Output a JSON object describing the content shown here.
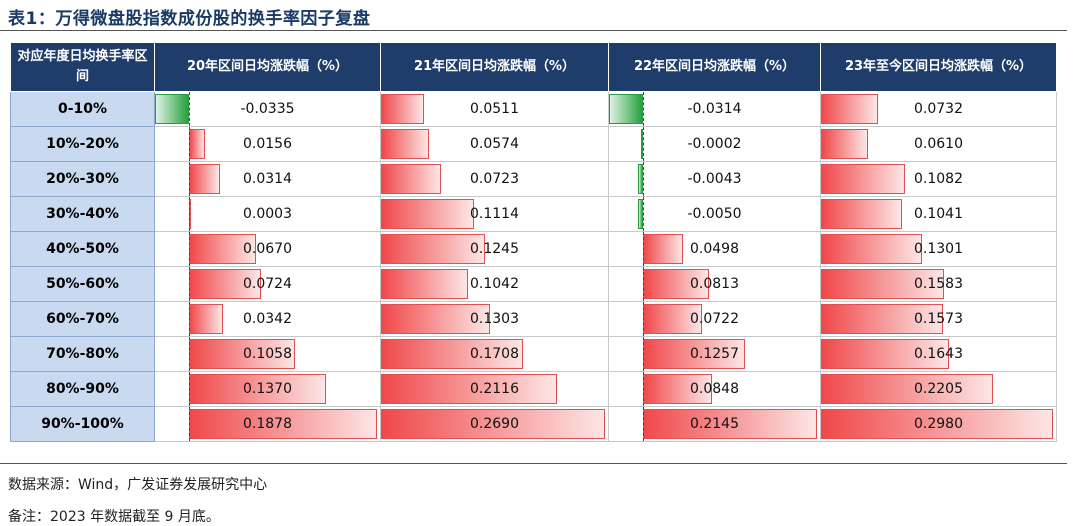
{
  "title": "表1：万得微盘股指数成份股的换手率因子复盘",
  "table": {
    "headers": [
      "对应年度日均换手率区间",
      "20年区间日均涨跌幅（%）",
      "21年区间日均涨跌幅（%）",
      "22年区间日均涨跌幅（%）",
      "23年至今区间日均涨跌幅（%）"
    ],
    "rows": [
      {
        "label": "0-10%",
        "values": [
          "-0.0335",
          "0.0511",
          "-0.0314",
          "0.0732"
        ]
      },
      {
        "label": "10%-20%",
        "values": [
          "0.0156",
          "0.0574",
          "-0.0002",
          "0.0610"
        ]
      },
      {
        "label": "20%-30%",
        "values": [
          "0.0314",
          "0.0723",
          "-0.0043",
          "0.1082"
        ]
      },
      {
        "label": "30%-40%",
        "values": [
          "0.0003",
          "0.1114",
          "-0.0050",
          "0.1041"
        ]
      },
      {
        "label": "40%-50%",
        "values": [
          "0.0670",
          "0.1245",
          "0.0498",
          "0.1301"
        ]
      },
      {
        "label": "50%-60%",
        "values": [
          "0.0724",
          "0.1042",
          "0.0813",
          "0.1583"
        ]
      },
      {
        "label": "60%-70%",
        "values": [
          "0.0342",
          "0.1303",
          "0.0722",
          "0.1573"
        ]
      },
      {
        "label": "70%-80%",
        "values": [
          "0.1058",
          "0.1708",
          "0.1257",
          "0.1643"
        ]
      },
      {
        "label": "80%-90%",
        "values": [
          "0.1370",
          "0.2116",
          "0.0848",
          "0.2205"
        ]
      },
      {
        "label": "90%-100%",
        "values": [
          "0.1878",
          "0.2690",
          "0.2145",
          "0.2980"
        ]
      }
    ]
  },
  "colors": {
    "header_bg": "#1f3d6b",
    "rowlabel_bg": "#c9daf0",
    "positive_bar": "#f0484a",
    "negative_bar": "#27a13f",
    "title": "#1a3a66"
  },
  "footer": {
    "source": "数据来源：Wind，广发证券发展研究中心",
    "remark": "备注：2023 年数据截至 9 月底。"
  }
}
